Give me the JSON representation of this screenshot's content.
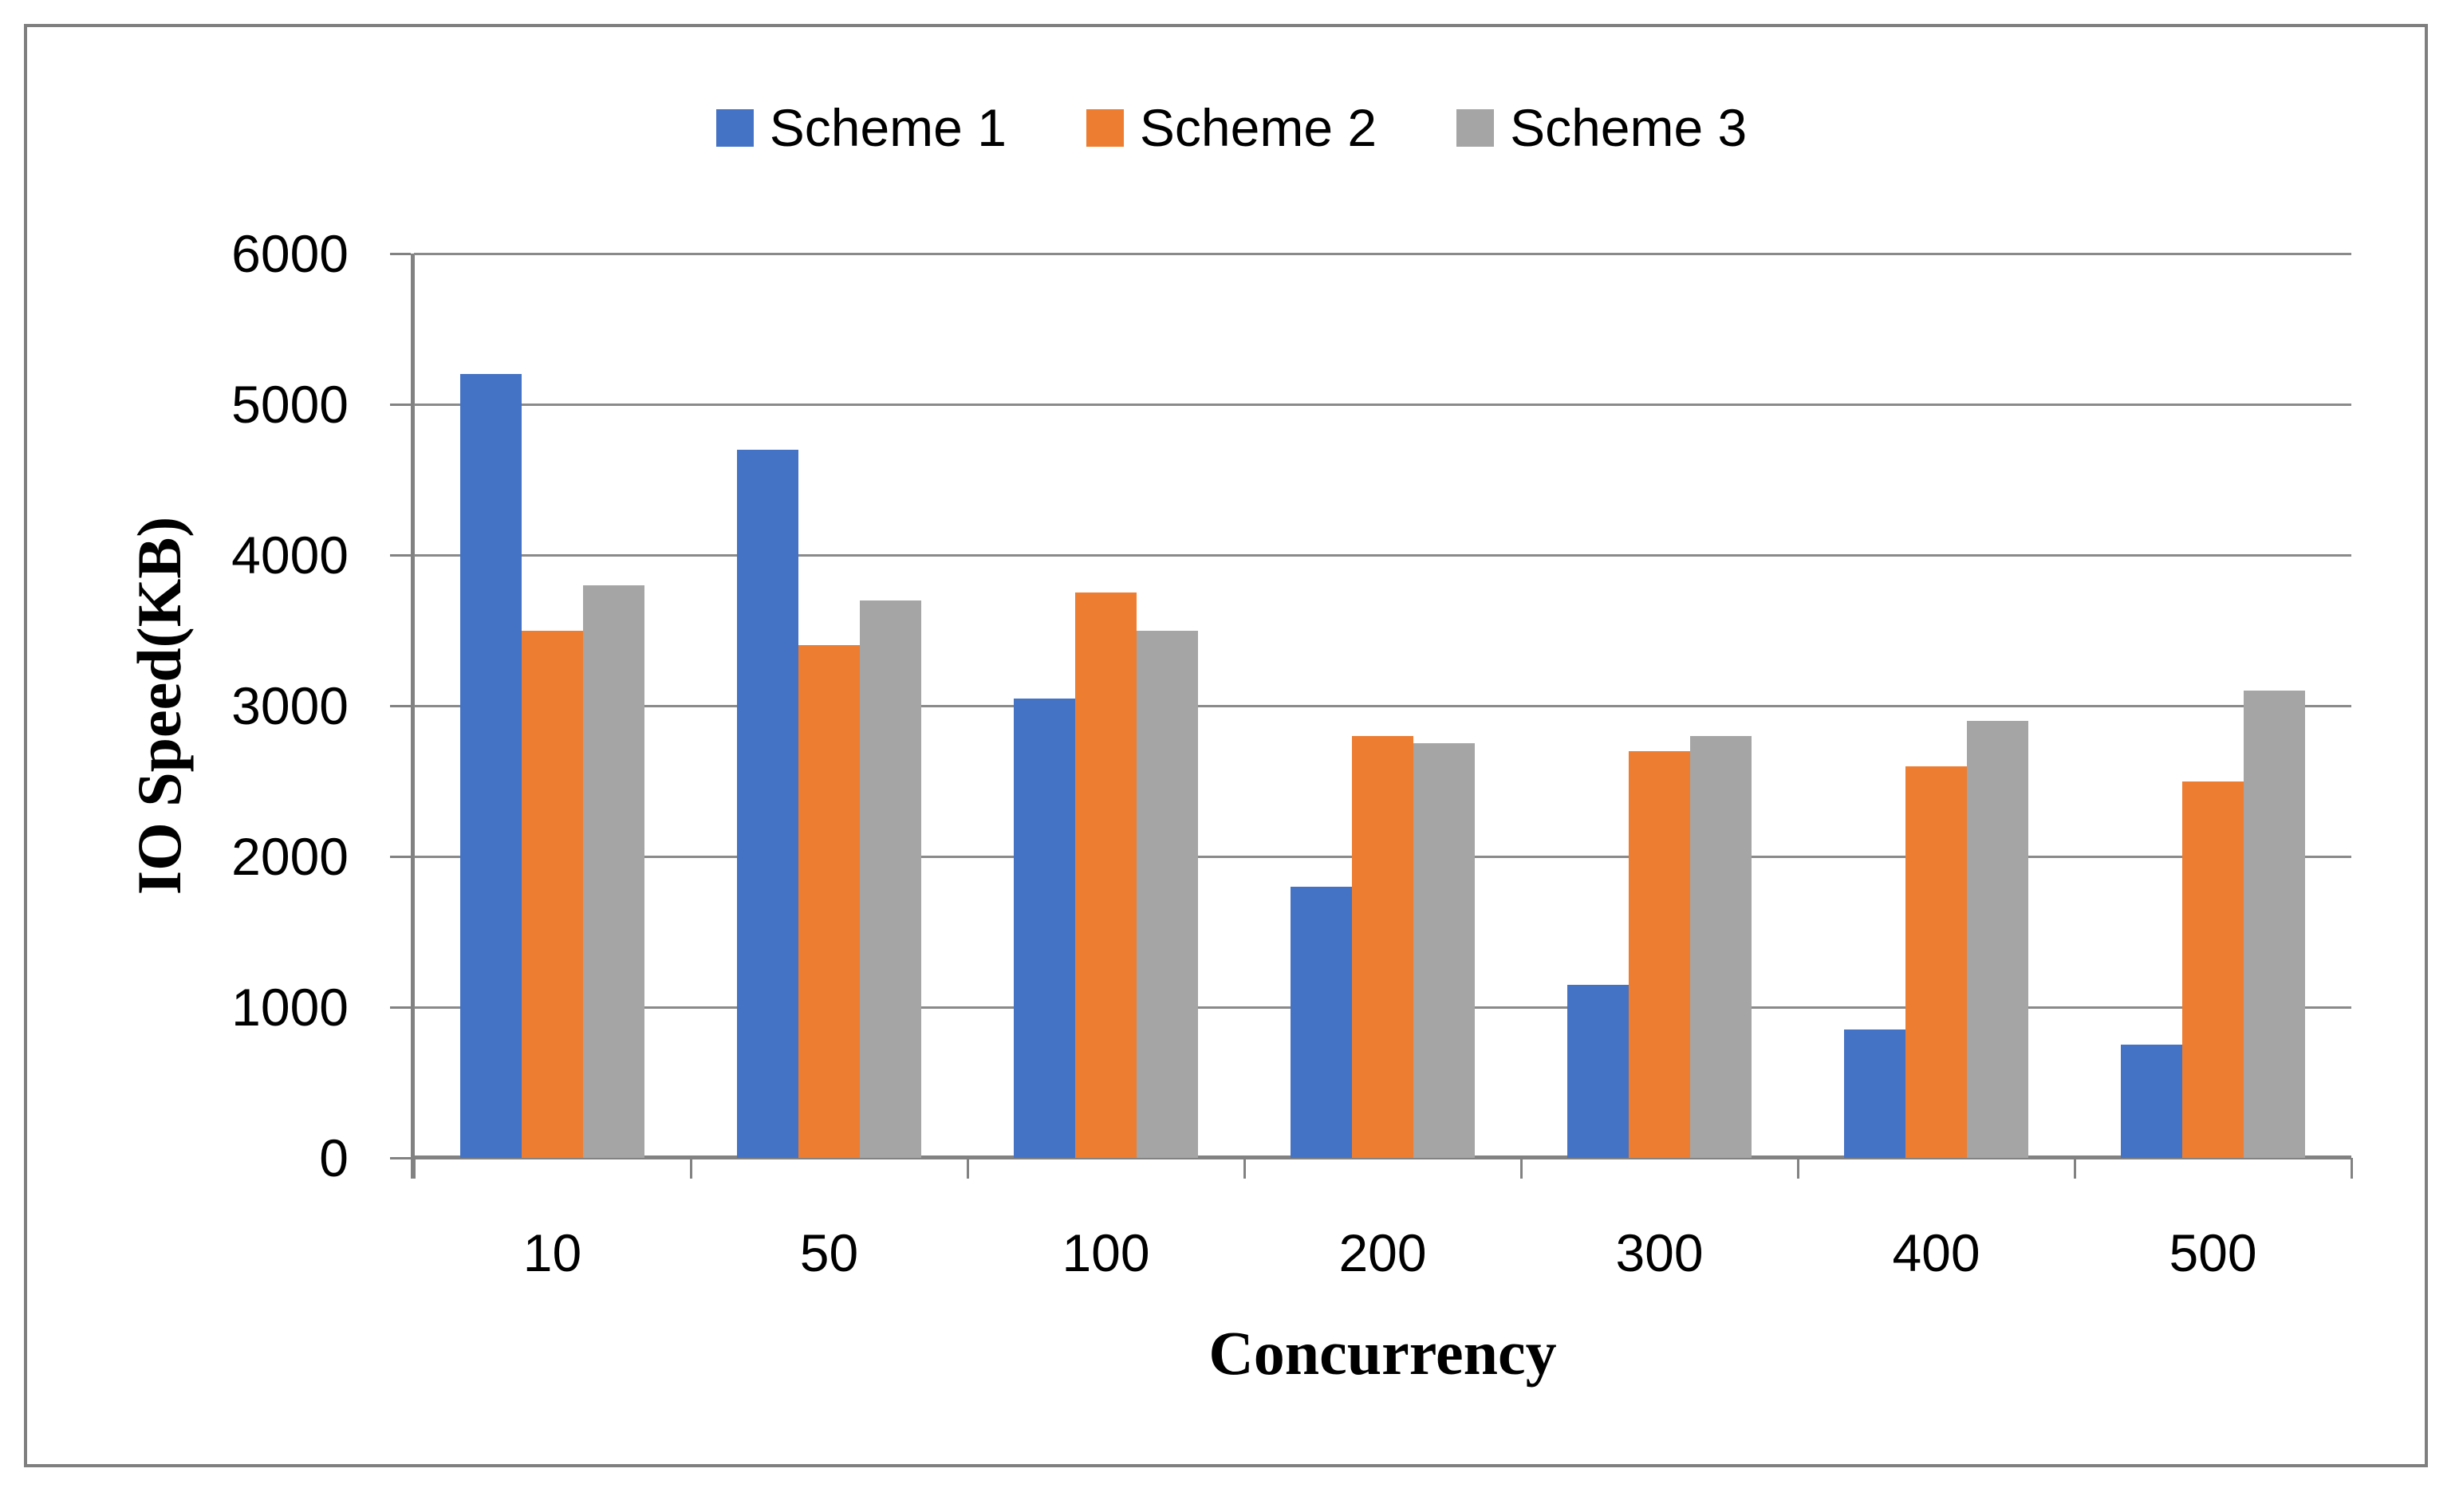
{
  "chart_data": {
    "type": "bar",
    "title": "",
    "xlabel": "Concurrency",
    "ylabel": "IO Speed(KB)",
    "categories": [
      "10",
      "50",
      "100",
      "200",
      "300",
      "400",
      "500"
    ],
    "series": [
      {
        "name": "Scheme 1",
        "color": "#4472C4",
        "values": [
          5200,
          4700,
          3050,
          1800,
          1150,
          850,
          750
        ]
      },
      {
        "name": "Scheme 2",
        "color": "#ED7D31",
        "values": [
          3500,
          3400,
          3750,
          2800,
          2700,
          2600,
          2500
        ]
      },
      {
        "name": "Scheme 3",
        "color": "#A5A5A5",
        "values": [
          3800,
          3700,
          3500,
          2750,
          2800,
          2900,
          3100
        ]
      }
    ],
    "ylim": [
      0,
      6000
    ],
    "yticks": [
      0,
      1000,
      2000,
      3000,
      4000,
      5000,
      6000
    ],
    "grid": true,
    "legend_position": "top",
    "bar_color_blue": "#4472C4",
    "bar_color_orange": "#ED7D31",
    "bar_color_gray": "#A5A5A5",
    "gridline_color": "#8A8A8A",
    "axis_color": "#828282",
    "figure_border_color": "#7F7F7F"
  }
}
